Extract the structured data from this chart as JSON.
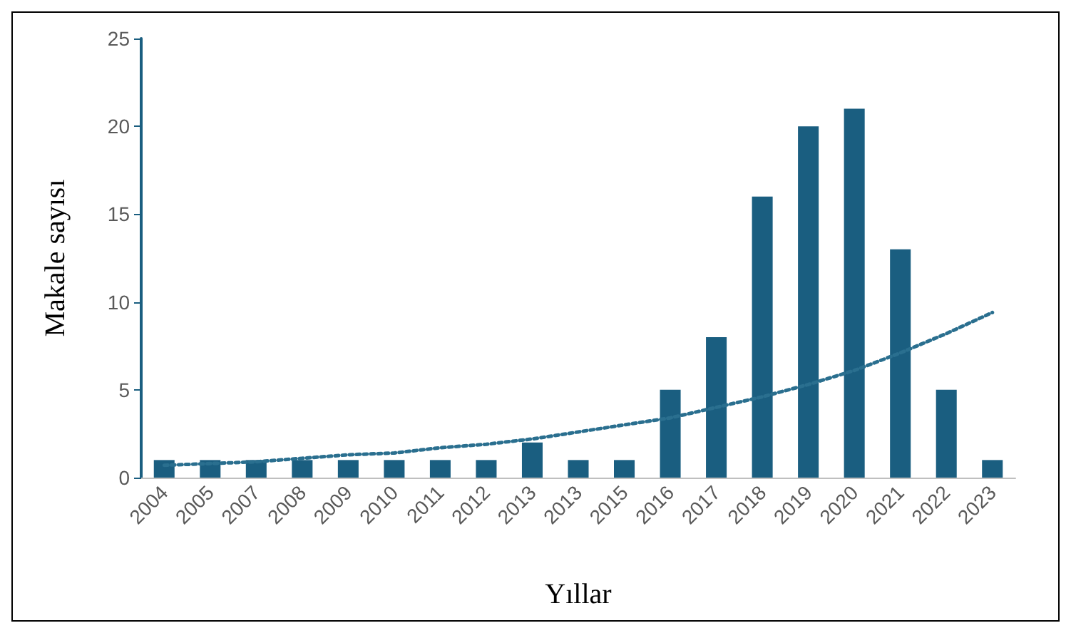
{
  "chart_data": {
    "type": "bar",
    "xlabel": "Yıllar",
    "ylabel": "Makale sayısı",
    "categories": [
      "2004",
      "2005",
      "2007",
      "2008",
      "2009",
      "2010",
      "2011",
      "2012",
      "2013",
      "2013",
      "2015",
      "2016",
      "2017",
      "2018",
      "2019",
      "2020",
      "2021",
      "2022",
      "2023"
    ],
    "series": [
      {
        "color": "#1a5e80",
        "values": [
          1,
          1,
          1,
          1,
          1,
          1,
          1,
          1,
          2,
          1,
          1,
          5,
          8,
          16,
          20,
          21,
          13,
          5,
          1
        ]
      },
      {
        "type": "line",
        "color": "#2a6f8f",
        "line_style": "dotted",
        "marker": "none",
        "values": [
          0.7,
          0.8,
          0.9,
          1.1,
          1.3,
          1.4,
          1.7,
          1.9,
          2.2,
          2.6,
          3.0,
          3.4,
          4.0,
          4.6,
          5.3,
          6.1,
          7.1,
          8.2,
          9.4
        ]
      }
    ],
    "ylim": [
      0,
      25
    ],
    "yticks": [
      0,
      5,
      10,
      15,
      20,
      25
    ],
    "grid": false
  }
}
